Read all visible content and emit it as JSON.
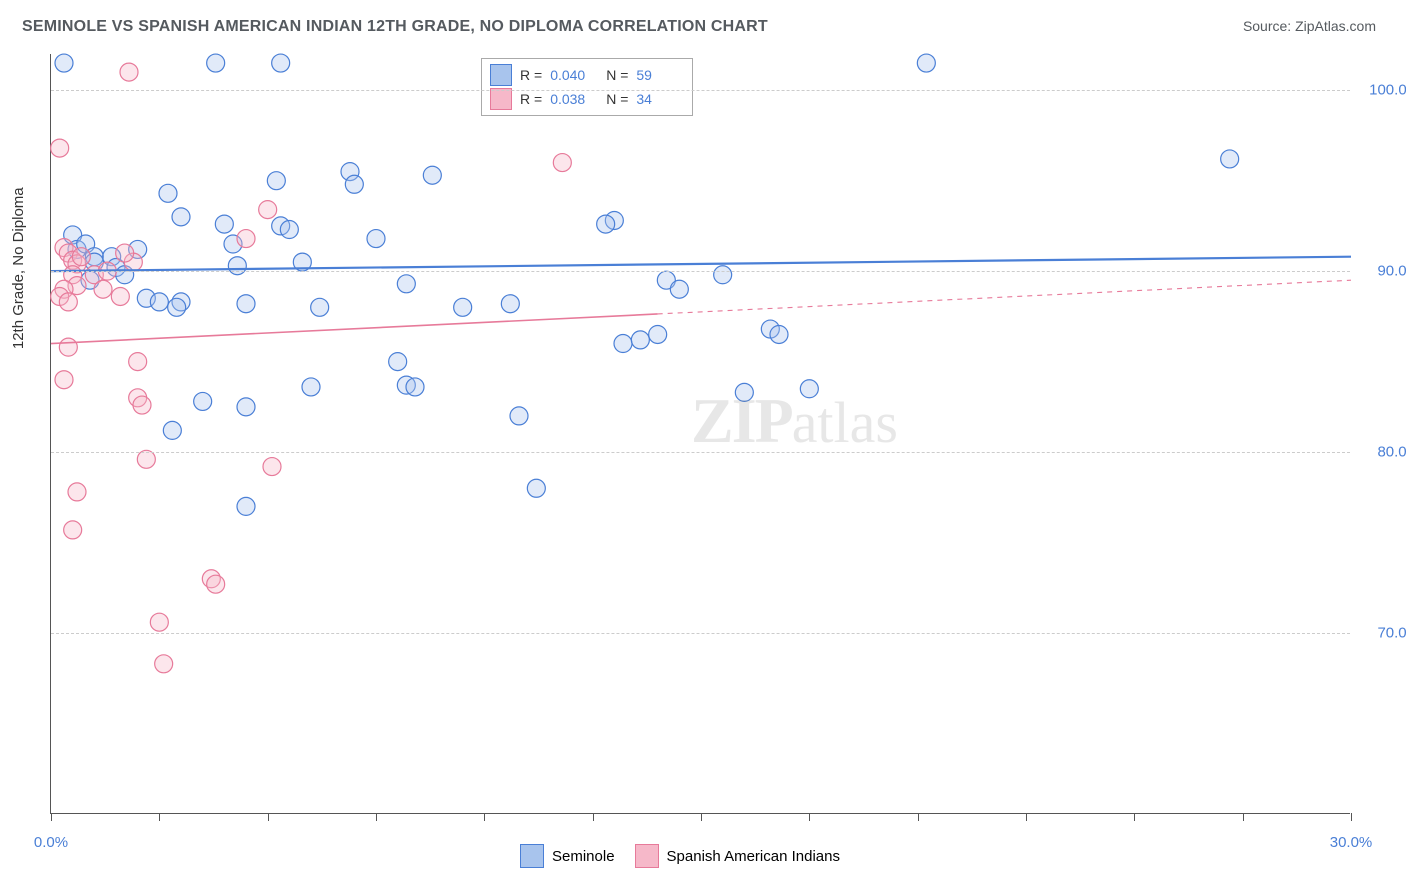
{
  "title": "SEMINOLE VS SPANISH AMERICAN INDIAN 12TH GRADE, NO DIPLOMA CORRELATION CHART",
  "source": "Source: ZipAtlas.com",
  "ylabel": "12th Grade, No Diploma",
  "chart": {
    "type": "scatter",
    "xlim": [
      0,
      30
    ],
    "ylim": [
      60,
      102
    ],
    "xtick_positions": [
      0,
      2.5,
      5,
      7.5,
      10,
      12.5,
      15,
      17.5,
      20,
      22.5,
      25,
      27.5,
      30
    ],
    "xtick_labels": {
      "0": "0.0%",
      "30": "30.0%"
    },
    "ytick_positions": [
      70,
      80,
      90,
      100
    ],
    "ytick_labels": {
      "70": "70.0%",
      "80": "80.0%",
      "90": "90.0%",
      "100": "100.0%"
    },
    "grid_color": "#cccccc",
    "axis_color": "#555555",
    "background_color": "#ffffff",
    "marker_radius": 9,
    "marker_stroke_width": 1.2,
    "marker_fill_opacity": 0.35,
    "series": [
      {
        "name": "Seminole",
        "color": "#4a7fd6",
        "fill": "#a8c4ed",
        "r_value": "0.040",
        "n_value": "59",
        "trend": {
          "x1": 0,
          "y1": 90.0,
          "x2": 30,
          "y2": 90.8,
          "solid_until_x": 30,
          "stroke_width": 2.2
        },
        "points": [
          [
            0.3,
            101.5
          ],
          [
            3.8,
            101.5
          ],
          [
            5.3,
            101.5
          ],
          [
            20.2,
            101.5
          ],
          [
            27.2,
            96.2
          ],
          [
            6.9,
            95.5
          ],
          [
            8.8,
            95.3
          ],
          [
            13.0,
            92.8
          ],
          [
            12.8,
            92.6
          ],
          [
            0.5,
            92.0
          ],
          [
            0.6,
            91.2
          ],
          [
            0.8,
            91.5
          ],
          [
            1.0,
            90.8
          ],
          [
            1.0,
            90.5
          ],
          [
            0.9,
            89.5
          ],
          [
            1.4,
            90.8
          ],
          [
            1.5,
            90.2
          ],
          [
            1.7,
            89.8
          ],
          [
            2.0,
            91.2
          ],
          [
            2.2,
            88.5
          ],
          [
            2.5,
            88.3
          ],
          [
            2.7,
            94.3
          ],
          [
            3.0,
            93.0
          ],
          [
            3.0,
            88.3
          ],
          [
            2.9,
            88.0
          ],
          [
            4.0,
            92.6
          ],
          [
            4.2,
            91.5
          ],
          [
            4.3,
            90.3
          ],
          [
            4.5,
            88.2
          ],
          [
            5.2,
            95.0
          ],
          [
            5.3,
            92.5
          ],
          [
            5.5,
            92.3
          ],
          [
            5.8,
            90.5
          ],
          [
            6.2,
            88.0
          ],
          [
            6.0,
            83.6
          ],
          [
            7.0,
            94.8
          ],
          [
            7.5,
            91.8
          ],
          [
            8.2,
            89.3
          ],
          [
            8.0,
            85.0
          ],
          [
            8.2,
            83.7
          ],
          [
            8.4,
            83.6
          ],
          [
            9.5,
            88.0
          ],
          [
            10.6,
            88.2
          ],
          [
            10.8,
            82.0
          ],
          [
            11.2,
            78.0
          ],
          [
            13.2,
            86.0
          ],
          [
            13.6,
            86.2
          ],
          [
            14.0,
            86.5
          ],
          [
            14.2,
            89.5
          ],
          [
            14.5,
            89.0
          ],
          [
            15.5,
            89.8
          ],
          [
            16.0,
            83.3
          ],
          [
            16.6,
            86.8
          ],
          [
            16.8,
            86.5
          ],
          [
            4.5,
            77.0
          ],
          [
            2.8,
            81.2
          ],
          [
            3.5,
            82.8
          ],
          [
            4.5,
            82.5
          ],
          [
            17.5,
            83.5
          ]
        ]
      },
      {
        "name": "Spanish American Indians",
        "color": "#e77a9a",
        "fill": "#f6b8c9",
        "r_value": "0.038",
        "n_value": "34",
        "trend": {
          "x1": 0,
          "y1": 86.0,
          "x2": 30,
          "y2": 89.5,
          "solid_until_x": 14,
          "stroke_width": 1.6
        },
        "points": [
          [
            1.8,
            101.0
          ],
          [
            0.2,
            96.8
          ],
          [
            11.8,
            96.0
          ],
          [
            0.3,
            91.3
          ],
          [
            0.4,
            91.0
          ],
          [
            0.5,
            90.6
          ],
          [
            0.6,
            90.4
          ],
          [
            0.7,
            90.8
          ],
          [
            0.5,
            89.8
          ],
          [
            0.6,
            89.2
          ],
          [
            0.3,
            89.0
          ],
          [
            0.2,
            88.6
          ],
          [
            0.4,
            88.3
          ],
          [
            1.0,
            89.8
          ],
          [
            1.2,
            89.0
          ],
          [
            1.3,
            90.0
          ],
          [
            1.6,
            88.6
          ],
          [
            1.9,
            90.5
          ],
          [
            1.7,
            91.0
          ],
          [
            0.4,
            85.8
          ],
          [
            0.3,
            84.0
          ],
          [
            0.6,
            77.8
          ],
          [
            0.5,
            75.7
          ],
          [
            2.0,
            85.0
          ],
          [
            2.0,
            83.0
          ],
          [
            2.1,
            82.6
          ],
          [
            2.2,
            79.6
          ],
          [
            2.5,
            70.6
          ],
          [
            2.6,
            68.3
          ],
          [
            4.5,
            91.8
          ],
          [
            5.0,
            93.4
          ],
          [
            5.1,
            79.2
          ],
          [
            3.7,
            73.0
          ],
          [
            3.8,
            72.7
          ]
        ]
      }
    ]
  },
  "legend_top": {
    "r_label": "R =",
    "n_label": "N ="
  },
  "legend_bottom": {
    "items": [
      "Seminole",
      "Spanish American Indians"
    ]
  },
  "watermark": {
    "zip": "ZIP",
    "atlas": "atlas"
  }
}
